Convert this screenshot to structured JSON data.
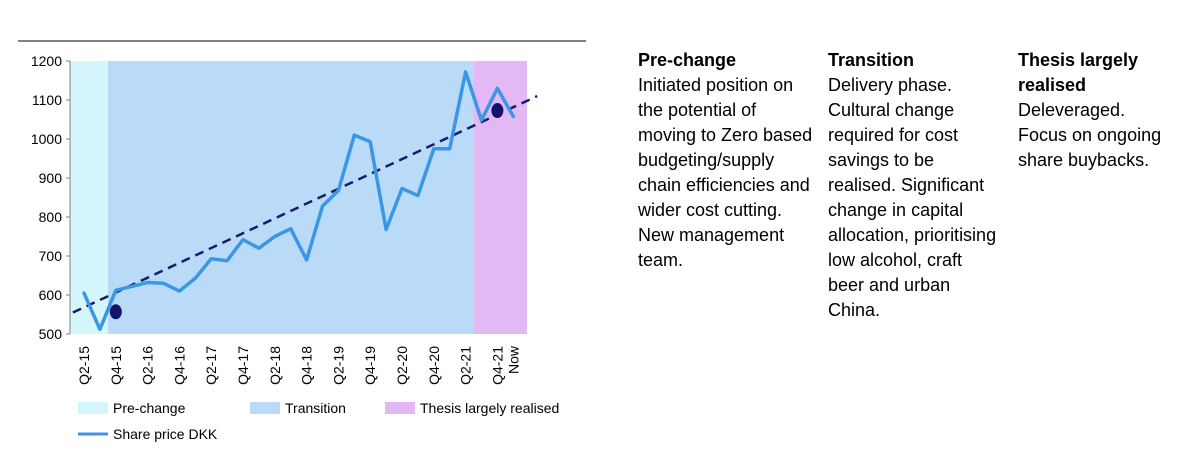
{
  "chart_data": {
    "type": "line",
    "categories": [
      "Q2-15",
      "",
      "Q4-15",
      "",
      "Q2-16",
      "",
      "Q4-16",
      "",
      "Q2-17",
      "",
      "Q4-17",
      "",
      "Q2-18",
      "",
      "Q4-18",
      "",
      "Q2-19",
      "",
      "Q4-19",
      "",
      "Q2-20",
      "",
      "Q4-20",
      "",
      "Q2-21",
      "",
      "Q4-21",
      "Now"
    ],
    "ylim": [
      500,
      1200
    ],
    "yticks": [
      500,
      600,
      700,
      800,
      900,
      1000,
      1100,
      1200
    ],
    "series": [
      {
        "name": "Share price DKK",
        "color": "#3b97e6",
        "values": [
          605,
          512,
          612,
          622,
          632,
          630,
          610,
          643,
          693,
          688,
          742,
          720,
          750,
          770,
          690,
          828,
          868,
          1010,
          993,
          768,
          873,
          855,
          975,
          975,
          1172,
          1048,
          1130,
          1058
        ]
      }
    ],
    "phases": [
      {
        "name": "Pre-change",
        "color": "#d5f7fb",
        "from_index": 0,
        "to_index": 1.5
      },
      {
        "name": "Transition",
        "color": "#b9dbf7",
        "from_index": 1.5,
        "to_index": 24.5
      },
      {
        "name": "Thesis largely realised",
        "color": "#e2b9f4",
        "from_index": 24.5,
        "to_index": 27
      }
    ],
    "trend": {
      "color": "#1a1a6e",
      "x0": -0.7,
      "y0": 555,
      "x1": 28.5,
      "y1": 1110
    },
    "markers": [
      {
        "x": 2,
        "y": 557,
        "color": "#14146e"
      },
      {
        "x": 26,
        "y": 1073,
        "color": "#14146e"
      }
    ],
    "legend": {
      "pre_change": "Pre-change",
      "transition": "Transition",
      "thesis": "Thesis largely realised",
      "share_price": "Share price DKK"
    }
  },
  "columns": [
    {
      "heading": "Pre-change",
      "body": "Initiated position on the potential of moving to Zero based budgeting/supply chain efficiencies and wider cost cutting. New management team."
    },
    {
      "heading": "Transition",
      "body": "Delivery phase. Cultural change required for cost savings to be realised. Significant change in capital allocation, prioritising low alcohol, craft beer and urban China."
    },
    {
      "heading": "Thesis largely realised",
      "body": "Deleveraged. Focus on ongoing share buybacks."
    }
  ]
}
